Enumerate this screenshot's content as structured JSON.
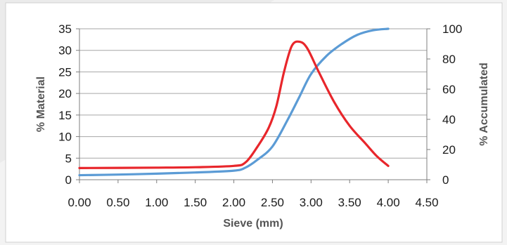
{
  "chart_data": {
    "type": "line",
    "title": "",
    "xlabel": "Sieve (mm)",
    "ylabel": "% Material",
    "y2label": "% Accumulated",
    "xlim": [
      0,
      4.5
    ],
    "ylim": [
      0,
      35
    ],
    "y2lim": [
      0,
      100
    ],
    "x_ticks": [
      "0.00",
      "0.50",
      "1.00",
      "1.50",
      "2.00",
      "2.50",
      "3.00",
      "3.50",
      "4.00",
      "4.50"
    ],
    "y_ticks": [
      "0",
      "5",
      "10",
      "15",
      "20",
      "25",
      "30",
      "35"
    ],
    "y2_ticks": [
      "0",
      "20",
      "40",
      "60",
      "80",
      "100"
    ],
    "grid": true,
    "legend": "none",
    "series": [
      {
        "axis": "left",
        "color": "#e8262b",
        "points": [
          [
            0.0,
            2.7
          ],
          [
            1.0,
            2.8
          ],
          [
            1.5,
            2.9
          ],
          [
            2.0,
            3.2
          ],
          [
            2.15,
            4.0
          ],
          [
            2.3,
            7.5
          ],
          [
            2.45,
            12.0
          ],
          [
            2.55,
            17.0
          ],
          [
            2.65,
            25.0
          ],
          [
            2.75,
            31.0
          ],
          [
            2.85,
            32.0
          ],
          [
            2.95,
            30.5
          ],
          [
            3.1,
            25.0
          ],
          [
            3.3,
            18.0
          ],
          [
            3.5,
            12.5
          ],
          [
            3.7,
            8.5
          ],
          [
            3.85,
            5.5
          ],
          [
            4.0,
            3.2
          ]
        ]
      },
      {
        "axis": "right",
        "color": "#5b9bd5",
        "points": [
          [
            0.0,
            3.0
          ],
          [
            0.5,
            3.4
          ],
          [
            1.0,
            4.0
          ],
          [
            1.5,
            4.8
          ],
          [
            2.0,
            6.0
          ],
          [
            2.15,
            8.0
          ],
          [
            2.3,
            13.0
          ],
          [
            2.5,
            22.0
          ],
          [
            2.7,
            40.0
          ],
          [
            2.85,
            55.0
          ],
          [
            3.0,
            70.0
          ],
          [
            3.2,
            82.0
          ],
          [
            3.4,
            90.0
          ],
          [
            3.6,
            96.0
          ],
          [
            3.8,
            99.0
          ],
          [
            4.0,
            100.0
          ]
        ]
      }
    ]
  }
}
